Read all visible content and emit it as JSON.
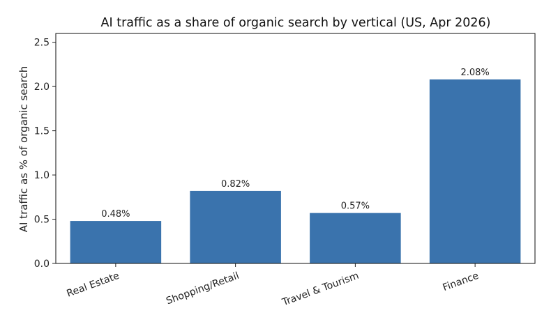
{
  "chart_data": {
    "type": "bar",
    "title": "AI traffic as a share of organic search by vertical (US, Apr 2026)",
    "xlabel": "",
    "ylabel": "AI traffic as % of organic search",
    "categories": [
      "Real Estate",
      "Shopping/Retail",
      "Travel & Tourism",
      "Finance"
    ],
    "values": [
      0.48,
      0.82,
      0.57,
      2.08
    ],
    "value_labels": [
      "0.48%",
      "0.82%",
      "0.57%",
      "2.08%"
    ],
    "ylim": [
      0,
      2.6
    ],
    "yticks": [
      0.0,
      0.5,
      1.0,
      1.5,
      2.0,
      2.5
    ],
    "ytick_labels": [
      "0.0",
      "0.5",
      "1.0",
      "1.5",
      "2.0",
      "2.5"
    ],
    "grid": false,
    "bar_color": "#3a73ad"
  }
}
